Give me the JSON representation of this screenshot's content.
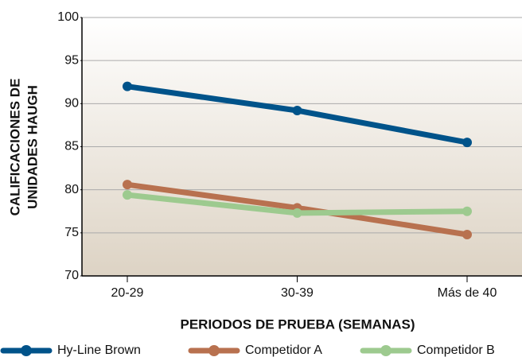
{
  "chart_data": {
    "type": "line",
    "ylabel": [
      "CALIFICACIONES DE",
      "UNIDADES HAUGH"
    ],
    "xlabel": "PERIODOS DE PRUEBA (SEMANAS)",
    "categories": [
      "20-29",
      "30-39",
      "Más de 40"
    ],
    "series": [
      {
        "name": "Hy-Line Brown",
        "color": "#00538a",
        "values": [
          92,
          89.2,
          85.5
        ]
      },
      {
        "name": "Competidor A",
        "color": "#b8714f",
        "values": [
          80.6,
          77.9,
          74.8
        ]
      },
      {
        "name": "Competidor B",
        "color": "#9dca8f",
        "values": [
          79.4,
          77.3,
          77.5
        ]
      }
    ],
    "ylim": [
      70,
      100
    ],
    "yticks": [
      70,
      75,
      80,
      85,
      90,
      95,
      100
    ],
    "grid": true,
    "legend": "bottom"
  }
}
